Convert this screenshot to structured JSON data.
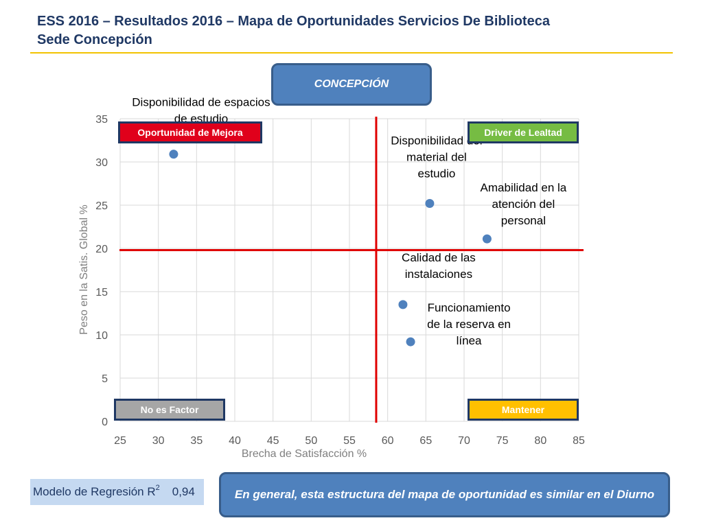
{
  "title": {
    "line1": "ESS 2016 – Resultados 2016 – Mapa de Oportunidades Servicios De Biblioteca",
    "line2": "Sede Concepción"
  },
  "header_label": "CONCEPCIÓN",
  "quadrants": {
    "top_left": {
      "label": "Oportunidad de Mejora",
      "color": "#e0001b"
    },
    "top_right": {
      "label": "Driver de Lealtad",
      "color": "#76bc43"
    },
    "bottom_left": {
      "label": "No es Factor",
      "color": "#a6a6a6"
    },
    "bottom_right": {
      "label": "Mantener",
      "color": "#ffc000"
    }
  },
  "regression": {
    "label": "Modelo de Regresión R",
    "superscript": "2",
    "value": "0,94"
  },
  "footer_text": "En general, esta estructura del mapa de oportunidad es similar en el Diurno",
  "chart_data": {
    "type": "scatter",
    "xlabel": "Brecha de Satisfacción %",
    "ylabel": "Peso en la Satis. Global %",
    "xlim": [
      25,
      85
    ],
    "ylim": [
      0,
      35
    ],
    "xticks": [
      25,
      30,
      35,
      40,
      45,
      50,
      55,
      60,
      65,
      70,
      75,
      80,
      85
    ],
    "yticks": [
      0,
      5,
      10,
      15,
      20,
      25,
      30,
      35
    ],
    "grid": true,
    "reference_lines": {
      "x": 58.5,
      "y": 19.8,
      "color": "#e00000"
    },
    "marker_color": "#4f81bd",
    "points": [
      {
        "label": [
          "Disponibilidad de espacios",
          "de estudio"
        ],
        "x": 32,
        "y": 30.9
      },
      {
        "label": [
          "Disponibilidad del",
          "material del",
          "estudio"
        ],
        "x": 65.5,
        "y": 25.2
      },
      {
        "label": [
          "Amabilidad en la",
          "atención del",
          "personal"
        ],
        "x": 73,
        "y": 21.1
      },
      {
        "label": [
          "Calidad de las",
          "instalaciones"
        ],
        "x": 62,
        "y": 13.5
      },
      {
        "label": [
          "Funcionamiento",
          "de la reserva en",
          "línea"
        ],
        "x": 63,
        "y": 9.2
      }
    ]
  }
}
